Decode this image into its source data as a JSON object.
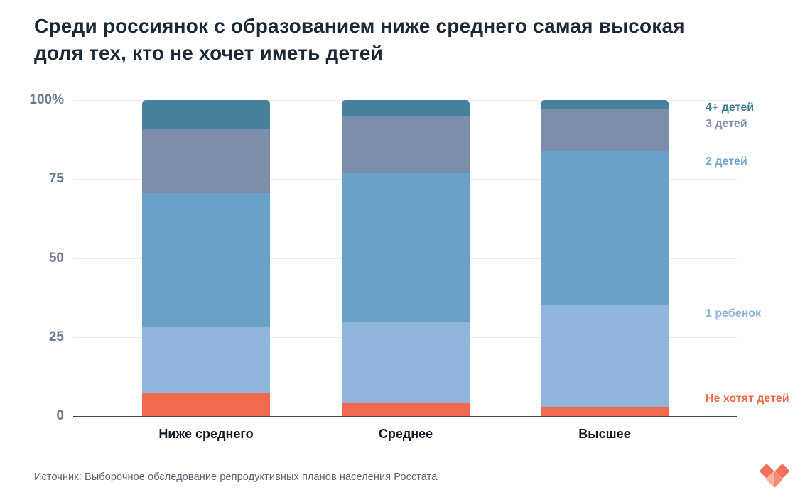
{
  "title": {
    "text": "Среди россиянок с образованием ниже среднего самая высокая доля тех, кто не хочет иметь детей"
  },
  "chart_data": {
    "type": "bar",
    "stacked": true,
    "unit": "%",
    "title": "Среди россиянок с образованием ниже среднего самая высокая доля тех, кто не хочет иметь детей",
    "categories": [
      "Ниже среднего",
      "Среднее",
      "Высшее"
    ],
    "series": [
      {
        "name": "Не хотят детей",
        "color": "#F16A4D",
        "label_color": "#F1694A",
        "values": [
          7.5,
          4,
          3
        ]
      },
      {
        "name": "1 ребенок",
        "color": "#90B5DA",
        "label_color": "#8FB4DA",
        "values": [
          20.5,
          26,
          32
        ]
      },
      {
        "name": "2 детей",
        "color": "#69A1C8",
        "label_color": "#74A5CE",
        "values": [
          42.5,
          47,
          49
        ]
      },
      {
        "name": "3 детей",
        "color": "#7C8CAB",
        "label_color": "#8290AE",
        "values": [
          20.5,
          18,
          13
        ]
      },
      {
        "name": "4+ детей",
        "color": "#47809D",
        "label_color": "#3C7795",
        "values": [
          9,
          5,
          3
        ]
      }
    ],
    "y_axis": {
      "ticks": [
        {
          "value": 0,
          "label": "0"
        },
        {
          "value": 25,
          "label": "25"
        },
        {
          "value": 50,
          "label": "50"
        },
        {
          "value": 75,
          "label": "75"
        },
        {
          "value": 100,
          "label": "100%"
        }
      ],
      "range": [
        0,
        100
      ],
      "grid": true
    },
    "legend_position": "right"
  },
  "source": {
    "text": "Источник: Выборочное обследование репродуктивных планов населения Росстата"
  },
  "logo": {
    "name": "tochno-heart-logo",
    "colors": {
      "coral": "#F1705A",
      "light": "#F9B2A2",
      "medium": "#F48A72"
    }
  }
}
